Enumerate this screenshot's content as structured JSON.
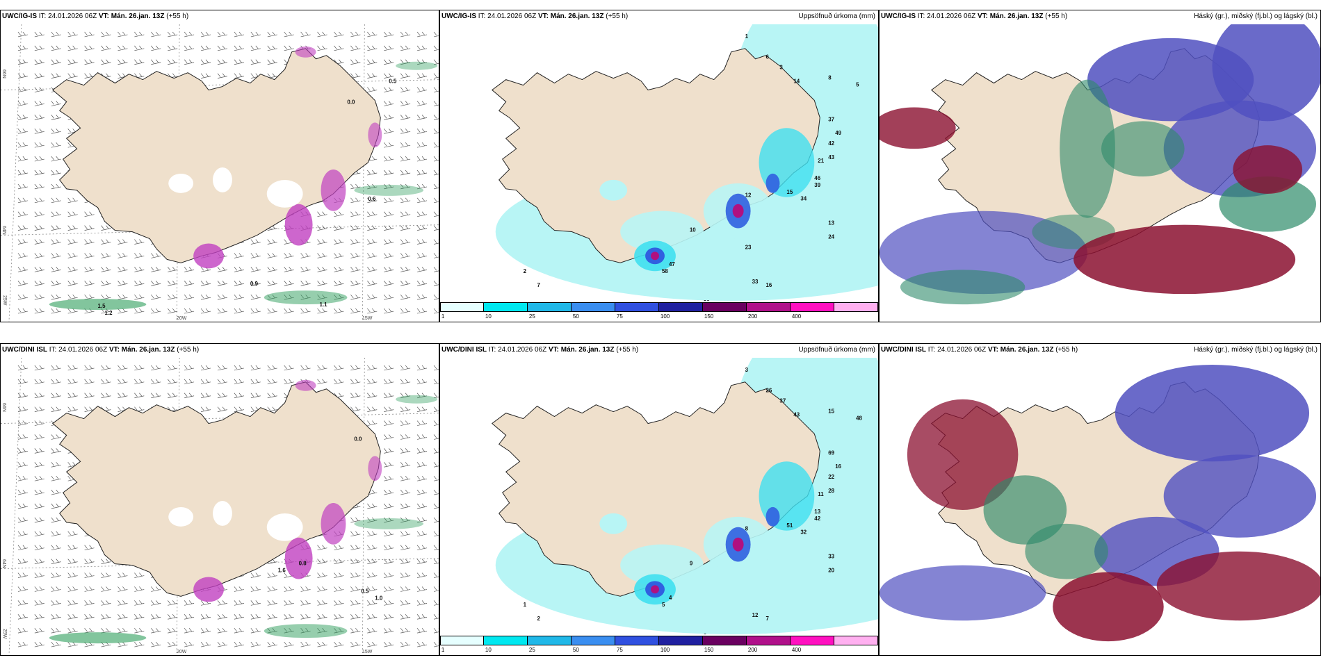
{
  "colors": {
    "land": "#efe0cc",
    "coast": "#222222",
    "precip_light": "#b8f5f5",
    "precip_mid": "#40e0f0",
    "precip_high": "#3060e0",
    "precip_max": "#b01080",
    "snow_green": "#2e9e5c",
    "cloud_high": "#2e8b6a",
    "cloud_mid": "#5050c0",
    "cloud_low": "#8b1030"
  },
  "panels": [
    {
      "id": "ig-wind",
      "model": "UWC/IG-IS",
      "it_label": "IT:",
      "it_value": "24.01.2026 06Z",
      "vt_label": "VT:",
      "vt_value": "Mán. 26.jan. 13Z",
      "lead": "(+55 h)",
      "right_title": "",
      "lat_labels": [
        "66N",
        "64N"
      ],
      "lon_labels": [
        "25W",
        "20W",
        "15W"
      ],
      "values": [
        "0.5",
        "0.0",
        "0.6",
        "0.9",
        "1.1",
        "1.2",
        "1.5"
      ]
    },
    {
      "id": "ig-precip",
      "model": "UWC/IG-IS",
      "it_label": "IT:",
      "it_value": "24.01.2026 06Z",
      "vt_label": "VT:",
      "vt_value": "Mán. 26.jan. 13Z",
      "lead": "(+55 h)",
      "right_title": "Uppsöfnuð úrkoma (mm)",
      "values": [
        "1",
        "6",
        "3",
        "14",
        "8",
        "5",
        "37",
        "49",
        "42",
        "43",
        "21",
        "46",
        "39",
        "15",
        "34",
        "13",
        "24",
        "33",
        "16",
        "20",
        "47",
        "58",
        "2",
        "7",
        "10",
        "12",
        "23"
      ]
    },
    {
      "id": "ig-cloud",
      "model": "UWC/IG-IS",
      "it_label": "IT:",
      "it_value": "24.01.2026 06Z",
      "vt_label": "VT:",
      "vt_value": "Mán. 26.jan. 13Z",
      "lead": "(+55 h)",
      "right_title": "Háský (gr.), miðský (fj.bl.) og lágský (bl.)"
    },
    {
      "id": "dini-wind",
      "model": "UWC/DINI ISL",
      "it_label": "IT:",
      "it_value": "24.01.2026 06Z",
      "vt_label": "VT:",
      "vt_value": "Mán. 26.jan. 13Z",
      "lead": "(+55 h)",
      "right_title": "",
      "lat_labels": [
        "66N",
        "64N"
      ],
      "lon_labels": [
        "25W",
        "20W",
        "15W"
      ],
      "values": [
        "0.5",
        "1.0",
        "0.0",
        "0.8",
        "1.6"
      ]
    },
    {
      "id": "dini-precip",
      "model": "UWC/DINI ISL",
      "it_label": "IT:",
      "it_value": "24.01.2026 06Z",
      "vt_label": "VT:",
      "vt_value": "Mán. 26.jan. 13Z",
      "lead": "(+55 h)",
      "right_title": "Uppsöfnuð úrkoma (mm)",
      "values": [
        "3",
        "26",
        "37",
        "43",
        "15",
        "48",
        "69",
        "16",
        "22",
        "28",
        "11",
        "13",
        "42",
        "51",
        "32",
        "33",
        "20",
        "12",
        "7",
        "6",
        "4",
        "5",
        "1",
        "2",
        "9",
        "8"
      ]
    },
    {
      "id": "dini-cloud",
      "model": "UWC/DINI ISL",
      "it_label": "IT:",
      "it_value": "24.01.2026 06Z",
      "vt_label": "VT:",
      "vt_value": "Mán. 26.jan. 13Z",
      "lead": "(+55 h)",
      "right_title": "Háský (gr.), miðský (fj.bl.) og lágský (bl.)"
    }
  ],
  "colorbar": {
    "ticks": [
      "1",
      "10",
      "25",
      "50",
      "75",
      "100",
      "150",
      "200",
      "400"
    ],
    "colors": [
      "#e6ffff",
      "#00e8f0",
      "#20b8e8",
      "#3a8ef0",
      "#3050e0",
      "#2020a0",
      "#6a0060",
      "#b0108a",
      "#ff10c0",
      "#ffb0f0"
    ]
  }
}
